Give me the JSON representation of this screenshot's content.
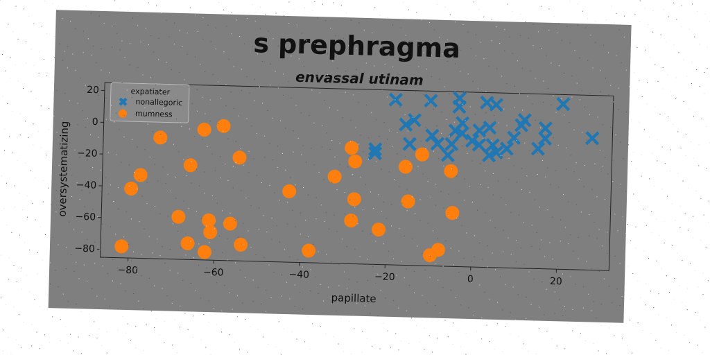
{
  "chart_data": {
    "type": "scatter",
    "title": "s prephragma",
    "subtitle": "envassal utinam",
    "x_label": "papillate",
    "y_label": "oversystematizing",
    "legend_title": "expatiater",
    "legend_loc": "upper left",
    "xlim": [
      -86.5,
      32.3
    ],
    "ylim": [
      -85,
      25
    ],
    "xticks": [
      {
        "value": -80,
        "label": "−80"
      },
      {
        "value": -60,
        "label": "−60"
      },
      {
        "value": -40,
        "label": "−40"
      },
      {
        "value": -20,
        "label": "−20"
      },
      0,
      20
    ],
    "yticks": [
      20,
      0,
      {
        "value": -20,
        "label": "−20"
      },
      {
        "value": -40,
        "label": "−40"
      },
      {
        "value": -60,
        "label": "−60"
      },
      {
        "value": -80,
        "label": "−80"
      }
    ],
    "series": [
      {
        "name": "nonallegoric",
        "color": "#1f77b4",
        "marker": "X",
        "x": [
          -18.5,
          -10.3,
          -3.6,
          -3.6,
          2.8,
          5,
          20.6,
          27.6,
          -16,
          -14,
          -23,
          -23,
          -15,
          -9.8,
          -5.2,
          -6,
          -2.8,
          -2.8,
          -0.4,
          1.2,
          3.6,
          4.4,
          3.6,
          7.7,
          11.7,
          11,
          16.6,
          16.6,
          15,
          9.3,
          -8.5,
          -4.4,
          1.2,
          5.3
        ],
        "values": [
          19,
          19,
          21,
          15.6,
          18.7,
          17.5,
          19,
          -2,
          3.5,
          6.5,
          -12.5,
          -15,
          -8.6,
          -3,
          -8,
          -15,
          5.4,
          -1,
          -5.6,
          1,
          3,
          -8,
          -14.5,
          -10,
          8.3,
          5,
          3.5,
          -3,
          -9.5,
          -3,
          -8,
          0.5,
          -8,
          -12.5
        ]
      },
      {
        "name": "mumness",
        "color": "#ff7f0e",
        "marker": "o",
        "x": [
          -73.2,
          -63,
          -58.5,
          -54.6,
          -66,
          -77.6,
          -79.7,
          -28.5,
          -27.6,
          -32.3,
          -42.8,
          -27.6,
          -28.2,
          -12,
          -15.8,
          -5.2,
          -15,
          -4.6,
          -21.7,
          -68.5,
          -61.4,
          -61,
          -56.4,
          -66.2,
          -62.2,
          -53.8,
          -81.6,
          -37.9,
          -9.6,
          -7.7
        ],
        "values": [
          -8.7,
          -3,
          -0.4,
          -20,
          -25.6,
          -32.6,
          -41.3,
          -12,
          -20.5,
          -30.4,
          -40.4,
          -44.3,
          -57.8,
          -15,
          -23,
          -25,
          -44.8,
          -51.3,
          -63,
          -58.3,
          -60,
          -67.4,
          -61.7,
          -74.8,
          -80,
          -74.8,
          -77.8,
          -77.4,
          -78.3,
          -74.8
        ]
      }
    ]
  }
}
